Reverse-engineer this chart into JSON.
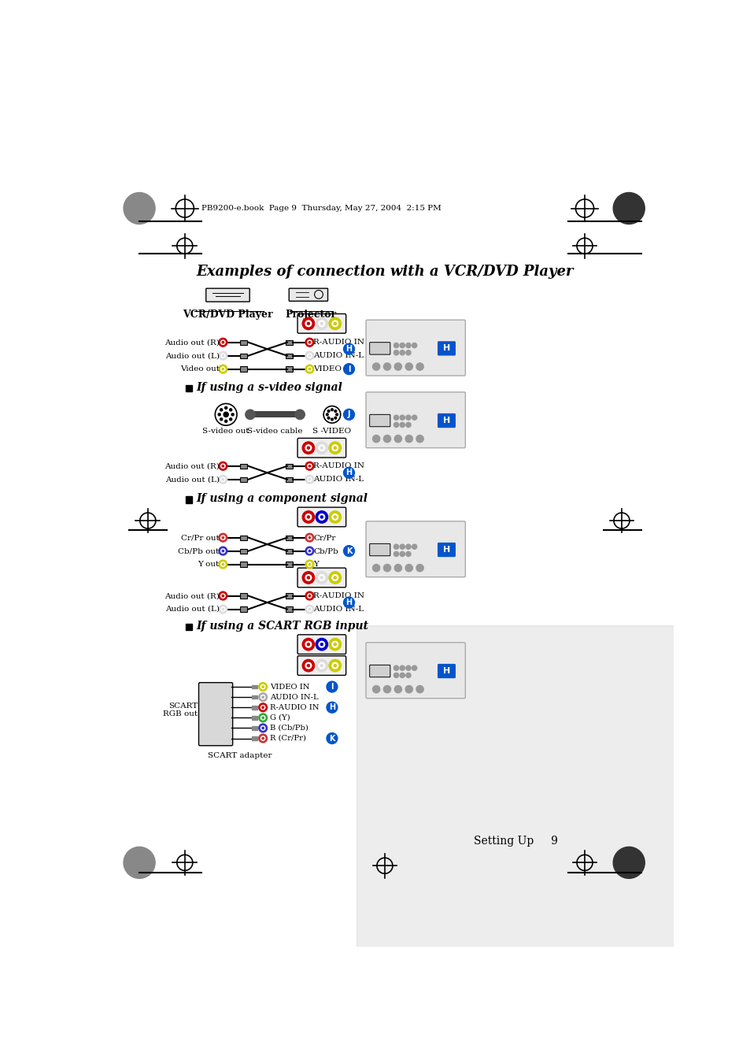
{
  "page_title": "Examples of connection with a VCR/DVD Player",
  "header_text": "PB9200-e.book  Page 9  Thursday, May 27, 2004  2:15 PM",
  "footer_text": "Setting Up     9",
  "bg_color": "#ffffff",
  "section1_label_left": "VCR/DVD Player",
  "section1_label_right": "Projector",
  "section2_title": "If using a s-video signal",
  "section3_title": "If using a component signal",
  "section4_title": "If using a SCART RGB input"
}
